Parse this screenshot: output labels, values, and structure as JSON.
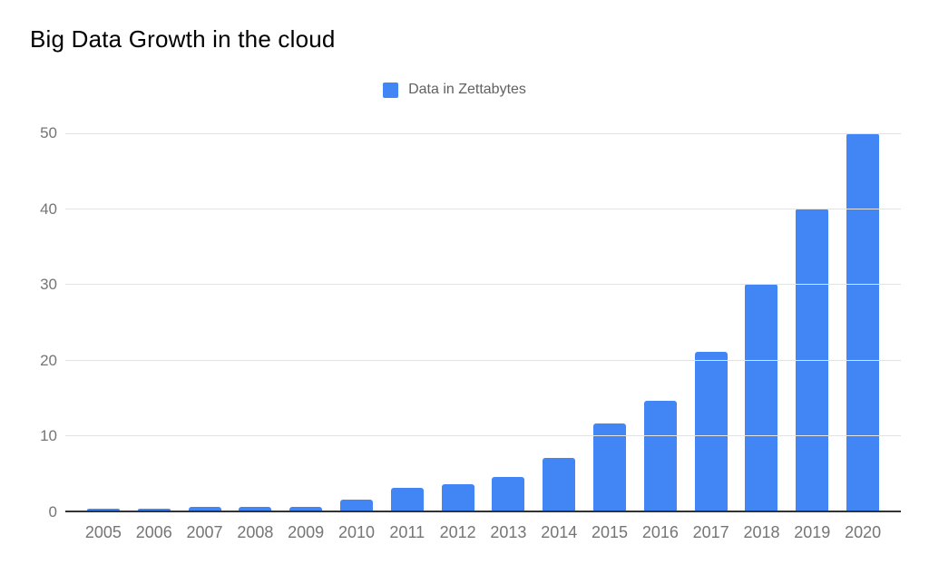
{
  "chart": {
    "title": "Big Data Growth in the cloud",
    "legend_label": "Data in Zettabytes"
  },
  "chart_data": {
    "type": "bar",
    "title": "Big Data Growth in the cloud",
    "legend": [
      {
        "label": "Data in Zettabytes",
        "color": "#4285f4"
      }
    ],
    "legend_position": "top-center",
    "categories": [
      "2005",
      "2006",
      "2007",
      "2008",
      "2009",
      "2010",
      "2011",
      "2012",
      "2013",
      "2014",
      "2015",
      "2016",
      "2017",
      "2018",
      "2019",
      "2020"
    ],
    "series": [
      {
        "name": "Data in Zettabytes",
        "values": [
          0.3,
          0.3,
          0.5,
          0.5,
          0.5,
          1.5,
          3,
          3.5,
          4.4,
          7,
          11.5,
          14.5,
          21,
          30,
          40,
          50
        ]
      }
    ],
    "xlabel": "",
    "ylabel": "",
    "ylim": [
      0,
      50
    ],
    "yticks": [
      0,
      10,
      20,
      30,
      40,
      50
    ],
    "grid": true,
    "colors": {
      "bar": "#4285f4",
      "gridline": "#e3e3e3",
      "axis_line": "#333333",
      "axis_text": "#757575",
      "title_text": "#000000",
      "legend_text": "#616161",
      "background": "#ffffff"
    }
  }
}
